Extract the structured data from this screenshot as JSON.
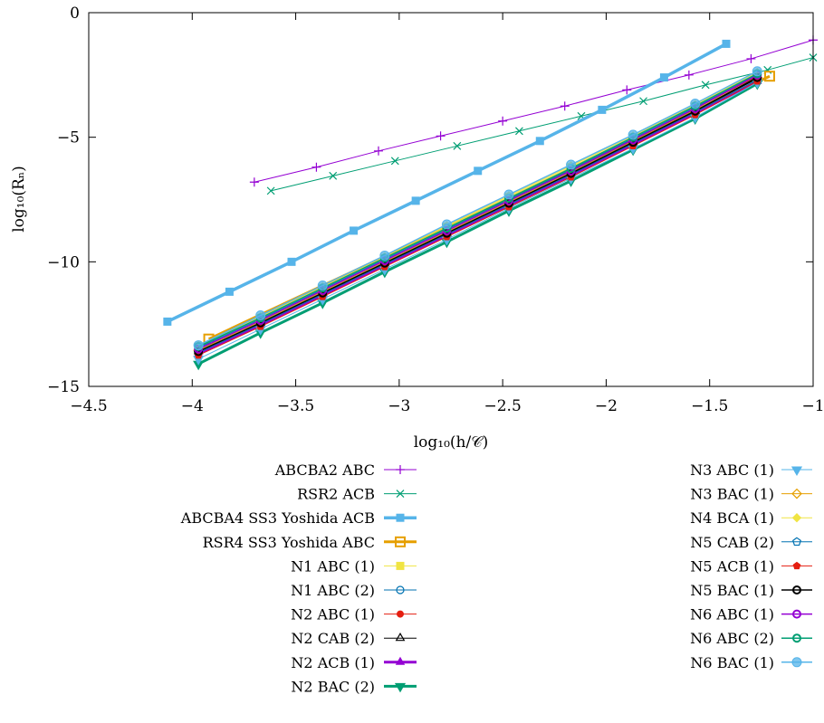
{
  "chart_data": {
    "type": "line",
    "title": "",
    "xlabel": "log₁₀(h/𝒞)",
    "ylabel": "log₁₀(Rₙ)",
    "xlim": [
      -4.5,
      -1
    ],
    "ylim": [
      -15,
      0
    ],
    "grid": false,
    "legend_position": "bottom",
    "xticks": [
      {
        "value": -4.5,
        "label": "−4.5"
      },
      {
        "value": -4,
        "label": "−4"
      },
      {
        "value": -3.5,
        "label": "−3.5"
      },
      {
        "value": -3,
        "label": "−3"
      },
      {
        "value": -2.5,
        "label": "−2.5"
      },
      {
        "value": -2,
        "label": "−2"
      },
      {
        "value": -1.5,
        "label": "−1.5"
      },
      {
        "value": -1,
        "label": "−1"
      }
    ],
    "yticks": [
      {
        "value": 0,
        "label": "0"
      },
      {
        "value": -5,
        "label": "−5"
      },
      {
        "value": -10,
        "label": "−10"
      },
      {
        "value": -15,
        "label": "−15"
      }
    ],
    "series": [
      {
        "name": "ABCBA2 ABC",
        "color": "#9400d3",
        "marker": "plus",
        "width": 1,
        "x": [
          -3.7,
          -3.4,
          -3.1,
          -2.8,
          -2.5,
          -2.2,
          -1.9,
          -1.6,
          -1.3,
          -1.0
        ],
        "y": [
          -6.8,
          -6.2,
          -5.55,
          -4.95,
          -4.35,
          -3.75,
          -3.1,
          -2.5,
          -1.85,
          -1.1
        ]
      },
      {
        "name": "RSR2 ACB",
        "color": "#009e73",
        "marker": "cross",
        "width": 1,
        "x": [
          -3.62,
          -3.32,
          -3.02,
          -2.72,
          -2.42,
          -2.12,
          -1.82,
          -1.52,
          -1.22,
          -1.0
        ],
        "y": [
          -7.15,
          -6.55,
          -5.95,
          -5.35,
          -4.75,
          -4.15,
          -3.55,
          -2.9,
          -2.3,
          -1.8
        ]
      },
      {
        "name": "ABCBA4 SS3 Yoshida ACB",
        "color": "#56b4e9",
        "marker": "filled-square",
        "width": 3.5,
        "x": [
          -4.12,
          -3.82,
          -3.52,
          -3.22,
          -2.92,
          -2.62,
          -2.32,
          -2.02,
          -1.72,
          -1.42
        ],
        "y": [
          -12.4,
          -11.2,
          -10.0,
          -8.75,
          -7.55,
          -6.35,
          -5.15,
          -3.9,
          -2.6,
          -1.25
        ]
      },
      {
        "name": "RSR4 SS3 Yoshida ABC",
        "color": "#e69f00",
        "marker": "square",
        "width": 3,
        "x": [
          -3.92,
          -1.21
        ],
        "y": [
          -13.1,
          -2.55
        ]
      },
      {
        "name": "N1 ABC (1)",
        "color": "#f0e442",
        "marker": "filled-square",
        "width": 1,
        "x": [
          -3.97,
          -3.67,
          -3.37,
          -3.07,
          -2.77,
          -2.47,
          -2.17,
          -1.87,
          -1.57,
          -1.27
        ],
        "y": [
          -13.4,
          -12.25,
          -11.05,
          -9.85,
          -8.6,
          -7.4,
          -6.2,
          -5.0,
          -3.75,
          -2.45
        ]
      },
      {
        "name": "N1 ABC (2)",
        "color": "#0072b2",
        "marker": "circle",
        "width": 1,
        "x": [
          -3.97,
          -3.67,
          -3.37,
          -3.07,
          -2.77,
          -2.47,
          -2.17,
          -1.87,
          -1.57,
          -1.27
        ],
        "y": [
          -13.45,
          -12.3,
          -11.1,
          -9.9,
          -8.7,
          -7.5,
          -6.3,
          -5.05,
          -3.8,
          -2.5
        ]
      },
      {
        "name": "N2 ABC (1)",
        "color": "#e51e10",
        "marker": "filled-circle",
        "width": 1,
        "x": [
          -3.97,
          -3.67,
          -3.37,
          -3.07,
          -2.77,
          -2.47,
          -2.17,
          -1.87,
          -1.57,
          -1.27
        ],
        "y": [
          -13.5,
          -12.35,
          -11.15,
          -9.95,
          -8.75,
          -7.55,
          -6.35,
          -5.1,
          -3.85,
          -2.55
        ]
      },
      {
        "name": "N2 CAB (2)",
        "color": "#000000",
        "marker": "triangle",
        "width": 1,
        "x": [
          -3.97,
          -3.67,
          -3.37,
          -3.07,
          -2.77,
          -2.47,
          -2.17,
          -1.87,
          -1.57,
          -1.27
        ],
        "y": [
          -13.6,
          -12.45,
          -11.25,
          -10.05,
          -8.85,
          -7.65,
          -6.45,
          -5.2,
          -3.95,
          -2.65
        ]
      },
      {
        "name": "N2 ACB (1)",
        "color": "#9400d3",
        "marker": "filled-triangle",
        "width": 3,
        "x": [
          -3.97,
          -3.67,
          -3.37,
          -3.07,
          -2.77,
          -2.47,
          -2.17,
          -1.87,
          -1.57,
          -1.27
        ],
        "y": [
          -13.7,
          -12.55,
          -11.35,
          -10.15,
          -8.95,
          -7.75,
          -6.55,
          -5.3,
          -4.05,
          -2.75
        ]
      },
      {
        "name": "N2 BAC (2)",
        "color": "#009e73",
        "marker": "filled-triangle-down",
        "width": 3,
        "x": [
          -3.97,
          -3.67,
          -3.37,
          -3.07,
          -2.77,
          -2.47,
          -2.17,
          -1.87,
          -1.57,
          -1.27
        ],
        "y": [
          -14.1,
          -12.85,
          -11.65,
          -10.4,
          -9.2,
          -7.95,
          -6.75,
          -5.5,
          -4.25,
          -2.85
        ]
      },
      {
        "name": "N3 ABC (1)",
        "color": "#56b4e9",
        "marker": "filled-triangle-down",
        "width": 1,
        "x": [
          -3.97,
          -3.67,
          -3.37,
          -3.07,
          -2.77,
          -2.47,
          -2.17,
          -1.87,
          -1.57,
          -1.27
        ],
        "y": [
          -13.9,
          -12.7,
          -11.5,
          -10.3,
          -9.1,
          -7.85,
          -6.65,
          -5.45,
          -4.2,
          -2.8
        ]
      },
      {
        "name": "N3 BAC (1)",
        "color": "#e69f00",
        "marker": "diamond",
        "width": 1,
        "x": [
          -3.97,
          -3.67,
          -3.37,
          -3.07,
          -2.77,
          -2.47,
          -2.17,
          -1.87,
          -1.57,
          -1.27
        ],
        "y": [
          -13.55,
          -12.4,
          -11.2,
          -10.0,
          -8.8,
          -7.6,
          -6.4,
          -5.15,
          -3.9,
          -2.6
        ]
      },
      {
        "name": "N4 BCA (1)",
        "color": "#f0e442",
        "marker": "filled-diamond",
        "width": 1,
        "x": [
          -3.97,
          -3.67,
          -3.37,
          -3.07,
          -2.77,
          -2.47,
          -2.17,
          -1.87,
          -1.57,
          -1.27
        ],
        "y": [
          -13.35,
          -12.2,
          -11.0,
          -9.8,
          -8.55,
          -7.35,
          -6.15,
          -4.95,
          -3.7,
          -2.4
        ]
      },
      {
        "name": "N5 CAB (2)",
        "color": "#0072b2",
        "marker": "pentagon",
        "width": 1,
        "x": [
          -3.97,
          -3.67,
          -3.37,
          -3.07,
          -2.77,
          -2.47,
          -2.17,
          -1.87,
          -1.57,
          -1.27
        ],
        "y": [
          -13.65,
          -12.5,
          -11.3,
          -10.1,
          -8.9,
          -7.7,
          -6.5,
          -5.25,
          -4.0,
          -2.7
        ]
      },
      {
        "name": "N5 ACB (1)",
        "color": "#e51e10",
        "marker": "filled-pentagon",
        "width": 1,
        "x": [
          -3.97,
          -3.67,
          -3.37,
          -3.07,
          -2.77,
          -2.47,
          -2.17,
          -1.87,
          -1.57,
          -1.27
        ],
        "y": [
          -13.75,
          -12.6,
          -11.4,
          -10.2,
          -9.0,
          -7.8,
          -6.6,
          -5.35,
          -4.1,
          -2.75
        ]
      },
      {
        "name": "N5 BAC (1)",
        "color": "#000000",
        "marker": "ring",
        "width": 1.5,
        "x": [
          -3.97,
          -3.67,
          -3.37,
          -3.07,
          -2.77,
          -2.47,
          -2.17,
          -1.87,
          -1.57,
          -1.27
        ],
        "y": [
          -13.6,
          -12.45,
          -11.25,
          -10.05,
          -8.85,
          -7.65,
          -6.45,
          -5.2,
          -3.95,
          -2.6
        ]
      },
      {
        "name": "N6 ABC (1)",
        "color": "#9400d3",
        "marker": "ring",
        "width": 1.5,
        "x": [
          -3.97,
          -3.67,
          -3.37,
          -3.07,
          -2.77,
          -2.47,
          -2.17,
          -1.87,
          -1.57,
          -1.27
        ],
        "y": [
          -13.5,
          -12.35,
          -11.15,
          -9.95,
          -8.75,
          -7.55,
          -6.35,
          -5.1,
          -3.85,
          -2.5
        ]
      },
      {
        "name": "N6 ABC (2)",
        "color": "#009e73",
        "marker": "ring",
        "width": 1.5,
        "x": [
          -3.97,
          -3.67,
          -3.37,
          -3.07,
          -2.77,
          -2.47,
          -2.17,
          -1.87,
          -1.57,
          -1.27
        ],
        "y": [
          -13.4,
          -12.25,
          -11.05,
          -9.85,
          -8.65,
          -7.45,
          -6.25,
          -5.0,
          -3.75,
          -2.45
        ]
      },
      {
        "name": "N6 BAC (1)",
        "color": "#56b4e9",
        "marker": "filled-circle-big",
        "width": 1.5,
        "x": [
          -3.97,
          -3.67,
          -3.37,
          -3.07,
          -2.77,
          -2.47,
          -2.17,
          -1.87,
          -1.57,
          -1.27
        ],
        "y": [
          -13.35,
          -12.15,
          -10.95,
          -9.75,
          -8.5,
          -7.3,
          -6.1,
          -4.9,
          -3.65,
          -2.35
        ]
      }
    ]
  }
}
